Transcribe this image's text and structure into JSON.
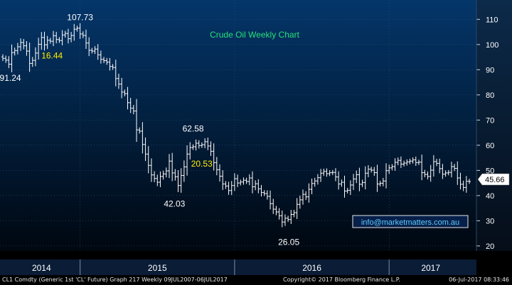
{
  "chart_data": {
    "type": "ohlc",
    "title": "Crude Oil Weekly Chart",
    "ylim": [
      18,
      116
    ],
    "y_ticks": [
      20,
      30,
      40,
      50,
      60,
      70,
      80,
      90,
      100,
      110
    ],
    "x_labels": [
      "2014",
      "2015",
      "2016",
      "2017"
    ],
    "last_price": "45.66",
    "callouts": [
      {
        "key": "hi2014",
        "text": "107.73",
        "week": 26,
        "price": 107.73,
        "color": "#ffffff"
      },
      {
        "key": "lo2014",
        "text": "91.24",
        "week": 3,
        "price": 91.24,
        "color": "#ffffff"
      },
      {
        "key": "move2014",
        "text": "16.44",
        "week": 18,
        "price": 94.5,
        "color": "#ffee00"
      },
      {
        "key": "hi2015",
        "text": "62.58",
        "week": 65,
        "price": 62.58,
        "color": "#ffffff"
      },
      {
        "key": "lo2015",
        "text": "42.03",
        "week": 58,
        "price": 42.03,
        "color": "#ffffff"
      },
      {
        "key": "move2015",
        "text": "20.53",
        "week": 66,
        "price": 51.5,
        "color": "#ffee00"
      },
      {
        "key": "lo2016",
        "text": "26.05",
        "week": 96,
        "price": 26.05,
        "color": "#ffffff"
      }
    ],
    "weekly_close": [
      94.5,
      93.8,
      92.2,
      96.8,
      97.6,
      99.1,
      100.8,
      99.5,
      97.4,
      92.5,
      93.7,
      96.6,
      100.1,
      102.8,
      99.9,
      101.7,
      101.3,
      103.5,
      102.0,
      101.6,
      103.8,
      104.4,
      102.3,
      103.6,
      106.1,
      106.5,
      104.2,
      103.6,
      100.6,
      97.7,
      97.4,
      98.2,
      95.9,
      94.1,
      93.6,
      93.0,
      91.3,
      90.9,
      86.5,
      84.3,
      81.1,
      80.5,
      76.9,
      74.7,
      73.6,
      66.1,
      65.6,
      60.3,
      56.5,
      52.0,
      48.2,
      46.8,
      45.3,
      47.6,
      48.6,
      49.8,
      53.7,
      49.0,
      47.5,
      44.0,
      48.0,
      51.4,
      56.5,
      59.1,
      59.4,
      60.8,
      59.9,
      60.2,
      61.4,
      59.7,
      57.6,
      53.1,
      50.3,
      47.7,
      44.6,
      43.8,
      42.0,
      44.0,
      46.7,
      45.0,
      45.4,
      46.1,
      45.6,
      47.0,
      43.5,
      44.7,
      42.7,
      41.2,
      40.8,
      39.7,
      36.8,
      34.6,
      33.5,
      32.0,
      29.5,
      31.0,
      30.5,
      32.5,
      33.2,
      36.5,
      38.3,
      40.5,
      39.5,
      42.5,
      44.8,
      45.8,
      47.1,
      48.9,
      49.6,
      48.7,
      49.1,
      49.2,
      47.4,
      44.6,
      45.3,
      41.8,
      42.1,
      44.2,
      46.6,
      48.3,
      44.5,
      45.2,
      48.9,
      50.5,
      50.1,
      49.1,
      44.6,
      44.9,
      45.8,
      49.9,
      51.0,
      51.5,
      53.2,
      54.0,
      52.5,
      52.9,
      53.4,
      53.7,
      54.2,
      53.1,
      53.3,
      49.1,
      48.4,
      47.6,
      50.1,
      53.5,
      52.8,
      50.7,
      48.5,
      49.0,
      49.2,
      51.5,
      50.8,
      47.0,
      44.5,
      43.2,
      45.7,
      45.6
    ]
  },
  "footer": {
    "left": "CL1 Comdty (Generic 1st 'CL' Future) Graph 217  Weekly 09JUL2007-06JUL2017",
    "center": "Copyright© 2017 Bloomberg Finance L.P.",
    "right": "06-Jul-2017 08:33:46"
  },
  "watermark": "info@marketmatters.com.au",
  "colors": {
    "background": "#000000",
    "plot_top": "#04366a",
    "plot_bottom": "#000710",
    "bars": "#ffffff",
    "title": "#27e07a",
    "highlight": "#ffee00",
    "grid": "#365f8a"
  }
}
